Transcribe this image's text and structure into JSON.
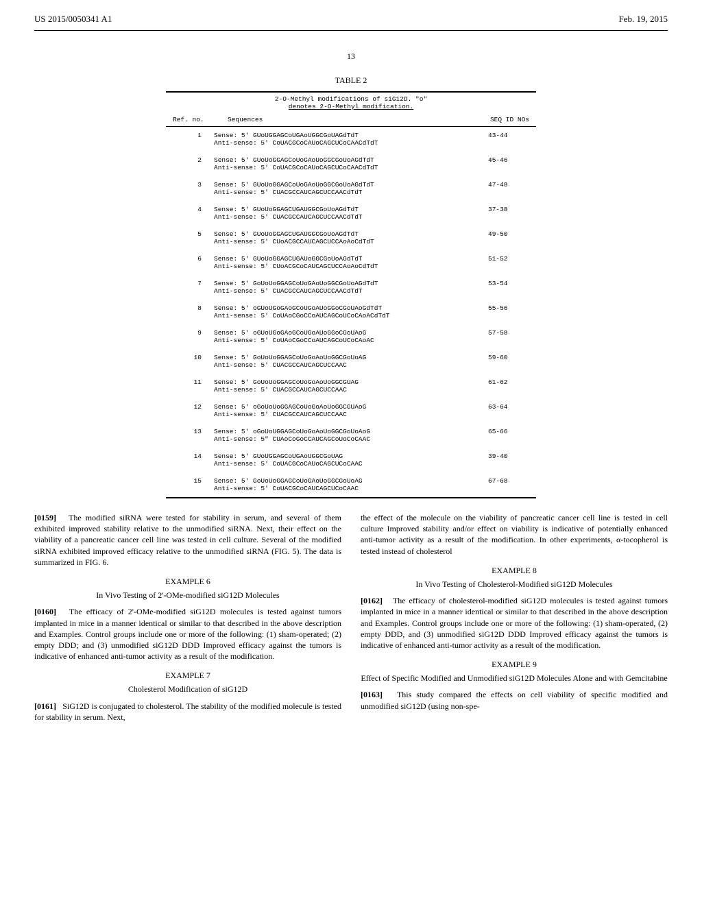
{
  "header": {
    "pub_number": "US 2015/0050341 A1",
    "pub_date": "Feb. 19, 2015"
  },
  "page_number": "13",
  "table": {
    "caption": "TABLE 2",
    "subtitle_line1": "2-O-Methyl modifications of siG12D. \"o\"",
    "subtitle_line2": "denotes 2-O-Methyl modification.",
    "head_ref": "Ref. no.",
    "head_seq": "Sequences",
    "head_ids": "SEQ ID NOs",
    "rows": [
      {
        "ref": "1",
        "sense": "Sense: 5' GUoUGGAGCoUGAoUGGCGoUAGdTdT",
        "anti": "Anti-sense: 5' CoUACGCoCAUoCAGCUCoCAACdTdT",
        "ids": "43-44"
      },
      {
        "ref": "2",
        "sense": "Sense: 5' GUoUoGGAGCoUoGAoUoGGCGoUoAGdTdT",
        "anti": "Anti-sense: 5' CoUACGCoCAUoCAGCUCoCAACdTdT",
        "ids": "45-46"
      },
      {
        "ref": "3",
        "sense": "Sense: 5' GUoUoGGAGCoUoGAoUoGGCGoUoAGdTdT",
        "anti": "Anti-sense: 5' CUACGCCAUCAGCUCCAACdTdT",
        "ids": "47-48"
      },
      {
        "ref": "4",
        "sense": "Sense: 5' GUoUoGGAGCUGAUGGCGoUoAGdTdT",
        "anti": "Anti-sense: 5' CUACGCCAUCAGCUCCAACdTdT",
        "ids": "37-38"
      },
      {
        "ref": "5",
        "sense": "Sense: 5' GUoUoGGAGCUGAUGGCGoUoAGdTdT",
        "anti": "Anti-sense: 5' CUoACGCCAUCAGCUCCAoAoCdTdT",
        "ids": "49-50"
      },
      {
        "ref": "6",
        "sense": "Sense: 5' GUoUoGGAGCUGAUoGGCGoUoAGdTdT",
        "anti": "Anti-sense: 5' CUoACGCoCAUCAGCUCCAoAoCdTdT",
        "ids": "51-52"
      },
      {
        "ref": "7",
        "sense": "Sense: 5' GoUoUoGGAGCoUoGAoUoGGCGoUoAGdTdT",
        "anti": "Anti-sense: 5' CUACGCCAUCAGCUCCAACdTdT",
        "ids": "53-54"
      },
      {
        "ref": "8",
        "sense": "Sense: 5' oGUoUGoGAoGCoUGoAUoGGoCGoUAoGdTdT",
        "anti": "Anti-sense: 5' CoUAoCGoCCoAUCAGCoUCoCAoACdTdT",
        "ids": "55-56"
      },
      {
        "ref": "9",
        "sense": "Sense: 5' oGUoUGoGAoGCoUGoAUoGGoCGoUAoG",
        "anti": "Anti-sense: 5' CoUAoCGoCCoAUCAGCoUCoCAoAC",
        "ids": "57-58"
      },
      {
        "ref": "10",
        "sense": "Sense: 5' GoUoUoGGAGCoUoGoAoUoGGCGoUoAG",
        "anti": "Anti-sense: 5' CUACGCCAUCAGCUCCAAC",
        "ids": "59-60"
      },
      {
        "ref": "11",
        "sense": "Sense: 5' GoUoUoGGAGCoUoGoAoUoGGCGUAG",
        "anti": "Anti-sense: 5' CUACGCCAUCAGCUCCAAC",
        "ids": "61-62"
      },
      {
        "ref": "12",
        "sense": "Sense: 5' oGoUoUoGGAGCoUoGoAoUoGGCGUAoG",
        "anti": "Anti-sense: 5' CUACGCCAUCAGCUCCAAC",
        "ids": "63-64"
      },
      {
        "ref": "13",
        "sense": "Sense: 5' oGoUoUGGAGCoUoGoAoUoGGCGoUoAoG",
        "anti": "Anti-sense: 5\" CUAoCoGoCCAUCAGCoUoCoCAAC",
        "ids": "65-66"
      },
      {
        "ref": "14",
        "sense": "Sense: 5' GUoUGGAGCoUGAoUGGCGoUAG",
        "anti": "Anti-sense: 5' CoUACGCoCAUoCAGCUCoCAAC",
        "ids": "39-40"
      },
      {
        "ref": "15",
        "sense": "Sense: 5' GoUoUoGGAGCoUoGAoUoGGCGoUoAG",
        "anti": "Anti-sense: 5' CoUACGCoCAUCAGCUCoCAAC",
        "ids": "67-68"
      }
    ]
  },
  "left_col": {
    "p0159": "The modified siRNA were tested for stability in serum, and several of them exhibited improved stability relative to the unmodified siRNA. Next, their effect on the viability of a pancreatic cancer cell line was tested in cell culture. Several of the modified siRNA exhibited improved efficacy relative to the unmodified siRNA (FIG. 5). The data is summarized in FIG. 6.",
    "ex6_title": "EXAMPLE 6",
    "ex6_sub": "In Vivo Testing of 2'-OMe-modified siG12D Molecules",
    "p0160": "The efficacy of 2'-OMe-modified siG12D molecules is tested against tumors implanted in mice in a manner identical or similar to that described in the above description and Examples. Control groups include one or more of the following: (1) sham-operated; (2) empty DDD; and (3) unmodified siG12D DDD Improved efficacy against the tumors is indicative of enhanced anti-tumor activity as a result of the modification.",
    "ex7_title": "EXAMPLE 7",
    "ex7_sub": "Cholesterol Modification of siG12D",
    "p0161": "SiG12D is conjugated to cholesterol. The stability of the modified molecule is tested for stability in serum. Next,"
  },
  "right_col": {
    "p_cont": "the effect of the molecule on the viability of pancreatic cancer cell line is tested in cell culture Improved stability and/or effect on viability is indicative of potentially enhanced anti-tumor activity as a result of the modification. In other experiments, α-tocopherol is tested instead of cholesterol",
    "ex8_title": "EXAMPLE 8",
    "ex8_sub": "In Vivo Testing of Cholesterol-Modified siG12D Molecules",
    "p0162": "The efficacy of cholesterol-modified siG12D molecules is tested against tumors implanted in mice in a manner identical or similar to that described in the above description and Examples. Control groups include one or more of the following: (1) sham-operated, (2) empty DDD, and (3) unmodified siG12D DDD Improved efficacy against the tumors is indicative of enhanced anti-tumor activity as a result of the modification.",
    "ex9_title": "EXAMPLE 9",
    "ex9_sub": "Effect of Specific Modified and Unmodified siG12D Molecules Alone and with Gemcitabine",
    "p0163": "This study compared the effects on cell viability of specific modified and unmodified siG12D (using non-spe-"
  }
}
